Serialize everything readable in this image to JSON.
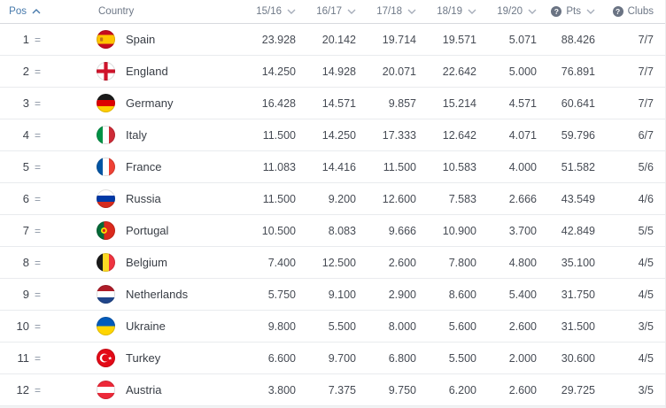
{
  "colors": {
    "sorted_header": "#4679ab",
    "header_text": "#6e7887",
    "row_text": "#464b54",
    "row_border": "#e9ebee",
    "header_border": "#d7dade",
    "info_icon_bg": "#6a7383"
  },
  "header": {
    "columns": [
      {
        "id": "pos",
        "label": "Pos",
        "sort": "asc",
        "info": false
      },
      {
        "id": "country",
        "label": "Country",
        "sort": "none",
        "info": false
      },
      {
        "id": "s1516",
        "label": "15/16",
        "sort": "sortable",
        "info": false
      },
      {
        "id": "s1617",
        "label": "16/17",
        "sort": "sortable",
        "info": false
      },
      {
        "id": "s1718",
        "label": "17/18",
        "sort": "sortable",
        "info": false
      },
      {
        "id": "s1819",
        "label": "18/19",
        "sort": "sortable",
        "info": false
      },
      {
        "id": "s1920",
        "label": "19/20",
        "sort": "sortable",
        "info": false
      },
      {
        "id": "pts",
        "label": "Pts",
        "sort": "sortable",
        "info": true
      },
      {
        "id": "clubs",
        "label": "Clubs",
        "sort": "none",
        "info": true
      }
    ],
    "info_glyph": "?"
  },
  "rows": [
    {
      "pos": "1",
      "movement": "=",
      "country": "Spain",
      "flag": "spain",
      "seasons": [
        "23.928",
        "20.142",
        "19.714",
        "19.571",
        "5.071"
      ],
      "pts": "88.426",
      "clubs": "7/7"
    },
    {
      "pos": "2",
      "movement": "=",
      "country": "England",
      "flag": "england",
      "seasons": [
        "14.250",
        "14.928",
        "20.071",
        "22.642",
        "5.000"
      ],
      "pts": "76.891",
      "clubs": "7/7"
    },
    {
      "pos": "3",
      "movement": "=",
      "country": "Germany",
      "flag": "germany",
      "seasons": [
        "16.428",
        "14.571",
        "9.857",
        "15.214",
        "4.571"
      ],
      "pts": "60.641",
      "clubs": "7/7"
    },
    {
      "pos": "4",
      "movement": "=",
      "country": "Italy",
      "flag": "italy",
      "seasons": [
        "11.500",
        "14.250",
        "17.333",
        "12.642",
        "4.071"
      ],
      "pts": "59.796",
      "clubs": "6/7"
    },
    {
      "pos": "5",
      "movement": "=",
      "country": "France",
      "flag": "france",
      "seasons": [
        "11.083",
        "14.416",
        "11.500",
        "10.583",
        "4.000"
      ],
      "pts": "51.582",
      "clubs": "5/6"
    },
    {
      "pos": "6",
      "movement": "=",
      "country": "Russia",
      "flag": "russia",
      "seasons": [
        "11.500",
        "9.200",
        "12.600",
        "7.583",
        "2.666"
      ],
      "pts": "43.549",
      "clubs": "4/6"
    },
    {
      "pos": "7",
      "movement": "=",
      "country": "Portugal",
      "flag": "portugal",
      "seasons": [
        "10.500",
        "8.083",
        "9.666",
        "10.900",
        "3.700"
      ],
      "pts": "42.849",
      "clubs": "5/5"
    },
    {
      "pos": "8",
      "movement": "=",
      "country": "Belgium",
      "flag": "belgium",
      "seasons": [
        "7.400",
        "12.500",
        "2.600",
        "7.800",
        "4.800"
      ],
      "pts": "35.100",
      "clubs": "4/5"
    },
    {
      "pos": "9",
      "movement": "=",
      "country": "Netherlands",
      "flag": "netherlands",
      "seasons": [
        "5.750",
        "9.100",
        "2.900",
        "8.600",
        "5.400"
      ],
      "pts": "31.750",
      "clubs": "4/5"
    },
    {
      "pos": "10",
      "movement": "=",
      "country": "Ukraine",
      "flag": "ukraine",
      "seasons": [
        "9.800",
        "5.500",
        "8.000",
        "5.600",
        "2.600"
      ],
      "pts": "31.500",
      "clubs": "3/5"
    },
    {
      "pos": "11",
      "movement": "=",
      "country": "Turkey",
      "flag": "turkey",
      "seasons": [
        "6.600",
        "9.700",
        "6.800",
        "5.500",
        "2.000"
      ],
      "pts": "30.600",
      "clubs": "4/5"
    },
    {
      "pos": "12",
      "movement": "=",
      "country": "Austria",
      "flag": "austria",
      "seasons": [
        "3.800",
        "7.375",
        "9.750",
        "6.200",
        "2.600"
      ],
      "pts": "29.725",
      "clubs": "3/5"
    }
  ]
}
